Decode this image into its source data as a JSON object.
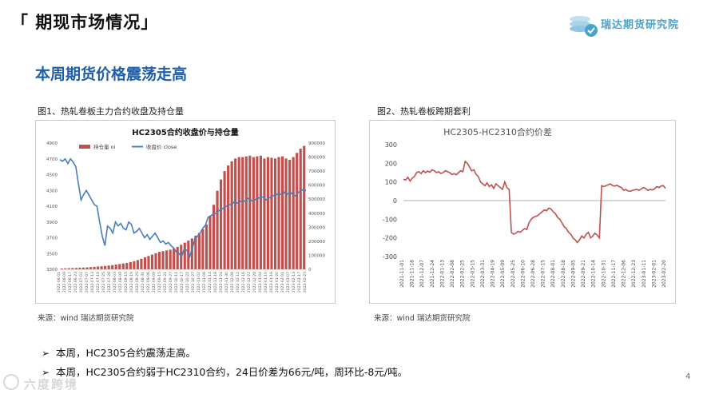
{
  "header": {
    "title": "「 期现市场情况」",
    "logo_text": "瑞达期货研究院",
    "logo_icon": "coin-stack-check-icon"
  },
  "section_title": "本周期货价格震荡走高",
  "figures": [
    {
      "caption": "图1、热轧卷板主力合约收盘及持仓量",
      "source": "来源：wind    瑞达期货研究院"
    },
    {
      "caption": "图2、热轧卷板跨期套利",
      "source": "来源：wind    瑞达期货研究院"
    }
  ],
  "bullets": [
    "本周，HC2305合约震荡走高。",
    "本周，HC2305合约弱于HC2310合约，24日价差为66元/吨，周环比-8元/吨。"
  ],
  "bullet_icon": "arrow-right-icon",
  "page_number": "4",
  "watermark": "六度跨境",
  "colors": {
    "accent_blue": "#1f5fa8",
    "bar_red": "#c0504d",
    "line_blue": "#4a7ebb",
    "spread_red": "#c0504d"
  },
  "chart_data": [
    {
      "type": "bar",
      "title": "HC2305合约收盘价与持仓量",
      "legend": [
        "持仓量 oi",
        "收盘价 close"
      ],
      "legend_position": "top-center",
      "x_ticks": [
        "2022-06-01",
        "2022-06-09",
        "2022-06-17",
        "2022-06-23",
        "2022-07-01",
        "2022-07-07",
        "2022-07-13",
        "2022-07-19",
        "2022-07-25",
        "2022-07-28",
        "2022-08-03",
        "2022-08-09",
        "2022-08-15",
        "2022-08-19",
        "2022-08-25",
        "2022-08-31",
        "2022-09-06",
        "2022-09-09",
        "2022-09-15",
        "2022-09-21",
        "2022-09-27",
        "2022-10-11",
        "2022-10-17",
        "2022-10-21",
        "2022-10-27",
        "2022-11-02",
        "2022-11-08",
        "2022-11-14",
        "2022-11-18",
        "2022-11-24",
        "2022-11-30",
        "2022-12-06",
        "2022-12-12",
        "2022-12-16",
        "2022-12-22",
        "2022-12-28",
        "2023-01-04",
        "2023-01-10",
        "2023-01-16",
        "2023-01-20",
        "2023-02-01",
        "2023-02-07",
        "2023-02-13",
        "2023-02-17",
        "2023-02-23"
      ],
      "y_left": {
        "ticks": [
          3300,
          3500,
          3700,
          3900,
          4100,
          4300,
          4500,
          4700,
          4900
        ],
        "range": [
          3300,
          4900
        ]
      },
      "y_right": {
        "ticks": [
          0,
          100000,
          200000,
          300000,
          400000,
          500000,
          600000,
          700000,
          800000,
          900000
        ],
        "range": [
          0,
          900000
        ]
      },
      "series": [
        {
          "name": "持仓量 oi",
          "kind": "bar",
          "axis": "right",
          "values": [
            6000,
            7000,
            8000,
            9000,
            10000,
            11000,
            12000,
            14000,
            16000,
            18000,
            20000,
            22000,
            24000,
            27000,
            30000,
            34000,
            38000,
            42000,
            46000,
            52000,
            58000,
            66000,
            75000,
            85000,
            95000,
            105000,
            115000,
            125000,
            130000,
            135000,
            140000,
            150000,
            160000,
            175000,
            190000,
            205000,
            220000,
            240000,
            260000,
            285000,
            320000,
            380000,
            460000,
            560000,
            640000,
            700000,
            740000,
            770000,
            790000,
            800000,
            800000,
            805000,
            810000,
            800000,
            805000,
            810000,
            790000,
            800000,
            795000,
            790000,
            800000,
            805000,
            790000,
            780000,
            800000,
            830000,
            860000,
            880000
          ]
        },
        {
          "name": "收盘价 close",
          "kind": "line",
          "axis": "left",
          "values": [
            4690,
            4670,
            4700,
            4640,
            4700,
            4660,
            4600,
            4380,
            4180,
            4250,
            4300,
            4240,
            4180,
            4120,
            4100,
            3900,
            3720,
            3600,
            3850,
            3820,
            3760,
            3900,
            3850,
            3880,
            3820,
            3800,
            3900,
            3870,
            3760,
            3780,
            3820,
            3760,
            3700,
            3740,
            3680,
            3720,
            3760,
            3700,
            3640,
            3660,
            3620,
            3640,
            3600,
            3570,
            3520,
            3500,
            3460,
            3560,
            3540,
            3460,
            3560,
            3680,
            3720,
            3760,
            3820,
            3860,
            3960,
            3980,
            4000,
            4010,
            4040,
            4060,
            4080,
            4100,
            4120,
            4120,
            4160,
            4140,
            4150,
            4180,
            4160,
            4200,
            4180,
            4160,
            4190,
            4200,
            4220,
            4210,
            4180,
            4200,
            4220,
            4240,
            4250,
            4260,
            4240,
            4280,
            4250,
            4280,
            4250,
            4230,
            4270,
            4300,
            4310,
            4300
          ]
        }
      ]
    },
    {
      "type": "line",
      "title": "HC2305-HC2310合约价差",
      "x_ticks": [
        "2021-11-01",
        "2021-11-18",
        "2021-12-07",
        "2021-12-24",
        "2022-01-13",
        "2022-02-08",
        "2022-02-25",
        "2022-03-15",
        "2022-03-31",
        "2022-04-19",
        "2022-05-09",
        "2022-05-25",
        "2022-06-10",
        "2022-06-28",
        "2022-07-15",
        "2022-08-01",
        "2022-08-18",
        "2022-09-05",
        "2022-09-21",
        "2022-10-14",
        "2022-10-31",
        "2022-11-17",
        "2022-12-06",
        "2022-12-23",
        "2023-01-11",
        "2023-02-01",
        "2023-02-20"
      ],
      "ylim": [
        -300,
        300
      ],
      "y_ticks": [
        -300,
        -200,
        -100,
        0,
        100,
        200,
        300
      ],
      "series": [
        {
          "name": "HC2305-HC2310",
          "values": [
            115,
            110,
            125,
            105,
            120,
            130,
            150,
            155,
            145,
            160,
            150,
            158,
            152,
            165,
            160,
            150,
            155,
            145,
            150,
            160,
            155,
            150,
            140,
            145,
            138,
            150,
            160,
            155,
            210,
            200,
            180,
            160,
            165,
            140,
            130,
            100,
            90,
            80,
            95,
            75,
            85,
            65,
            90,
            80,
            70,
            60,
            100,
            70,
            60,
            -170,
            -180,
            -175,
            -165,
            -170,
            -160,
            -150,
            -155,
            -120,
            -100,
            -90,
            -85,
            -80,
            -70,
            -60,
            -50,
            -55,
            -40,
            -45,
            -60,
            -70,
            -90,
            -100,
            -120,
            -140,
            -150,
            -170,
            -180,
            -200,
            -210,
            -225,
            -210,
            -190,
            -200,
            -180,
            -170,
            -200,
            -190,
            -175,
            -185,
            -200,
            80,
            75,
            80,
            85,
            90,
            80,
            78,
            82,
            75,
            70,
            55,
            60,
            52,
            50,
            55,
            58,
            60,
            55,
            62,
            70,
            65,
            55,
            60,
            58,
            62,
            75,
            70,
            78,
            80,
            66
          ]
        }
      ]
    }
  ]
}
